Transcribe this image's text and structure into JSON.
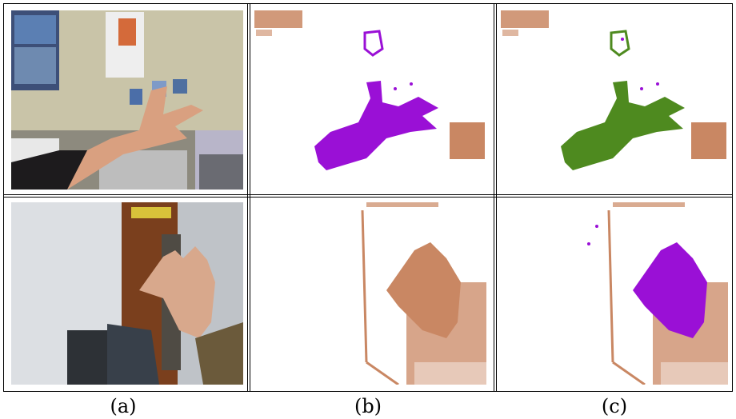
{
  "captions": [
    "(a)",
    "(b)",
    "(c)"
  ],
  "colors": {
    "background_blob": "#c98763",
    "hand_purple": "#9a10d6",
    "hand_green": "#4e8a1f",
    "frame": "#000000"
  }
}
